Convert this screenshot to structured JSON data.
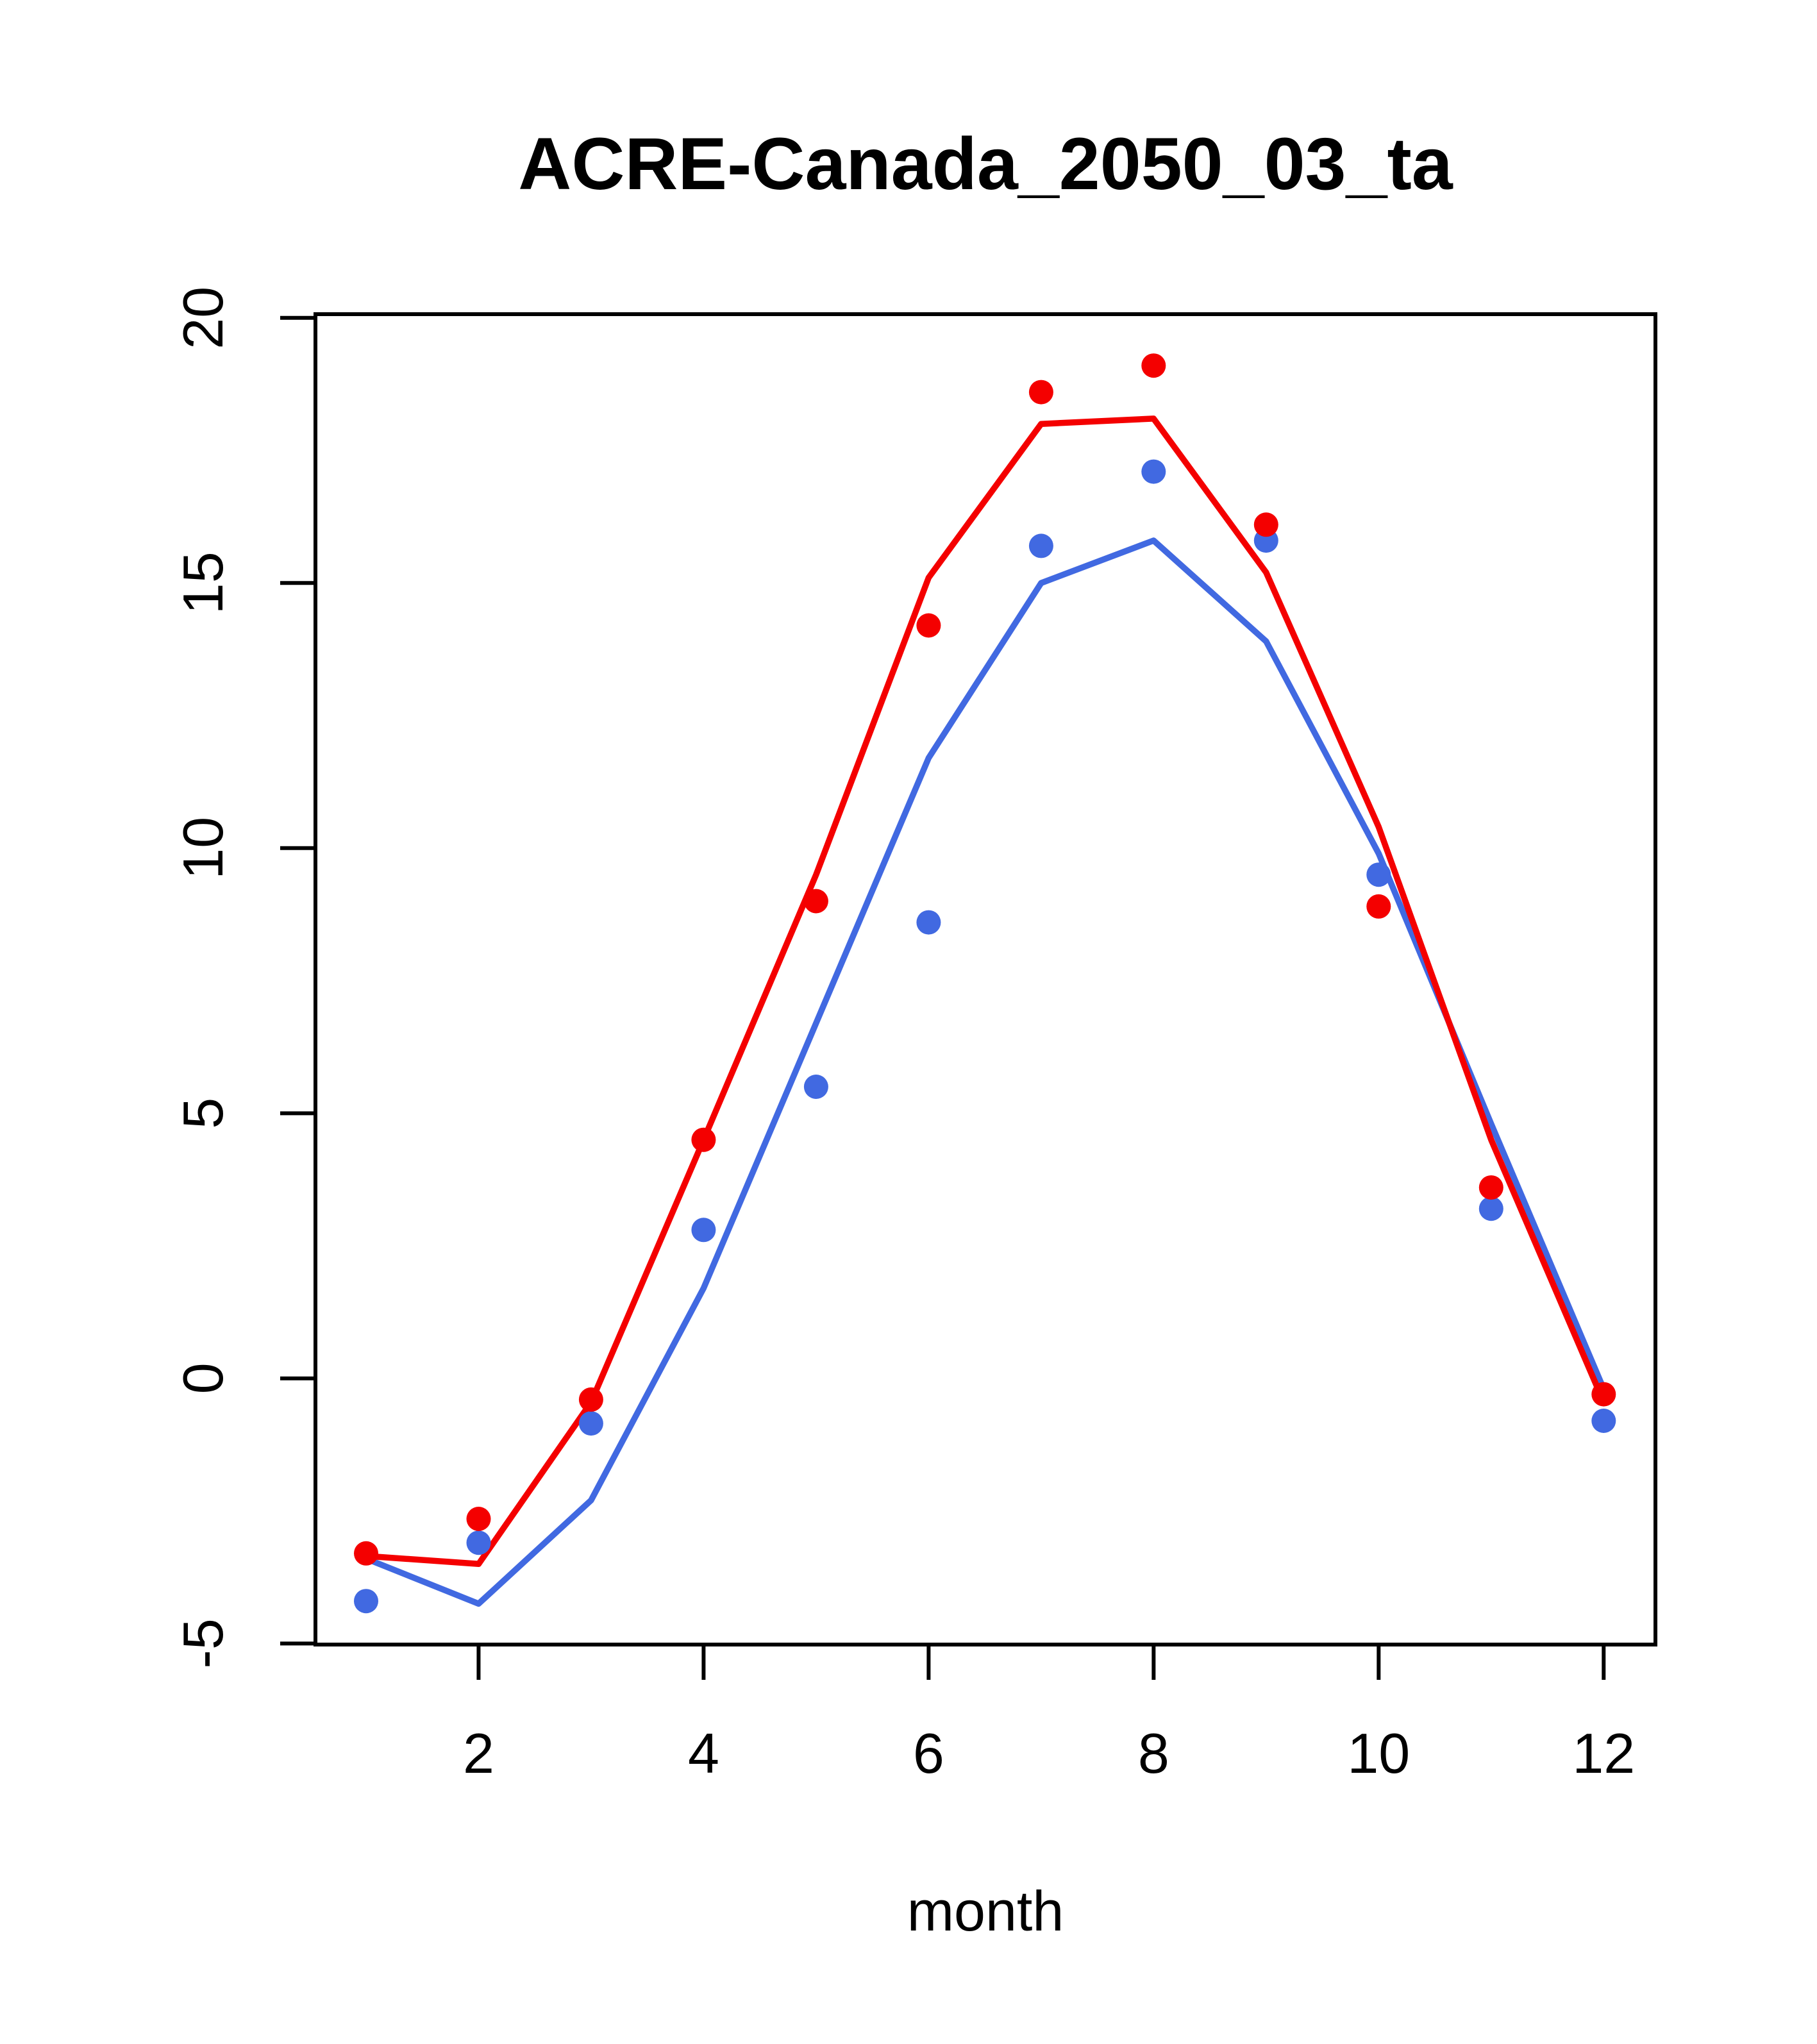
{
  "chart_data": {
    "type": "line",
    "title": "ACRE-Canada_2050_03_ta",
    "xlabel": "month",
    "ylabel": "",
    "x": [
      1,
      2,
      3,
      4,
      5,
      6,
      7,
      8,
      9,
      10,
      11,
      12
    ],
    "series": [
      {
        "name": "red-line",
        "type": "line",
        "color": "#f40000",
        "values": [
          -3.35,
          -3.5,
          -0.45,
          4.5,
          9.5,
          15.1,
          18.0,
          18.1,
          15.2,
          10.4,
          4.5,
          -0.45
        ]
      },
      {
        "name": "blue-line",
        "type": "line",
        "color": "#4169e1",
        "values": [
          -3.4,
          -4.25,
          -2.3,
          1.7,
          6.7,
          11.7,
          15.0,
          15.8,
          13.9,
          9.9,
          4.8,
          -0.2
        ]
      },
      {
        "name": "red-points",
        "type": "scatter",
        "color": "#f40000",
        "values": [
          -3.3,
          -2.65,
          -0.4,
          4.5,
          9.0,
          14.2,
          18.6,
          19.1,
          16.1,
          8.9,
          3.6,
          -0.3
        ]
      },
      {
        "name": "blue-points",
        "type": "scatter",
        "color": "#4169e1",
        "values": [
          -4.2,
          -3.1,
          -0.85,
          2.8,
          5.5,
          8.6,
          15.7,
          17.1,
          15.8,
          9.5,
          3.2,
          -0.8
        ]
      }
    ],
    "x_ticks": [
      2,
      4,
      6,
      8,
      10,
      12
    ],
    "x_tick_labels": [
      "2",
      "4",
      "6",
      "8",
      "10",
      "12"
    ],
    "y_ticks": [
      -5,
      0,
      5,
      10,
      15,
      20
    ],
    "y_tick_labels": [
      "-5",
      "0",
      "5",
      "10",
      "15",
      "20"
    ],
    "xlim": [
      0.55,
      12.46
    ],
    "ylim": [
      -5.02,
      20.07
    ],
    "grid": false,
    "legend": "none",
    "axis_color": "#000000",
    "background_color": "#ffffff"
  }
}
